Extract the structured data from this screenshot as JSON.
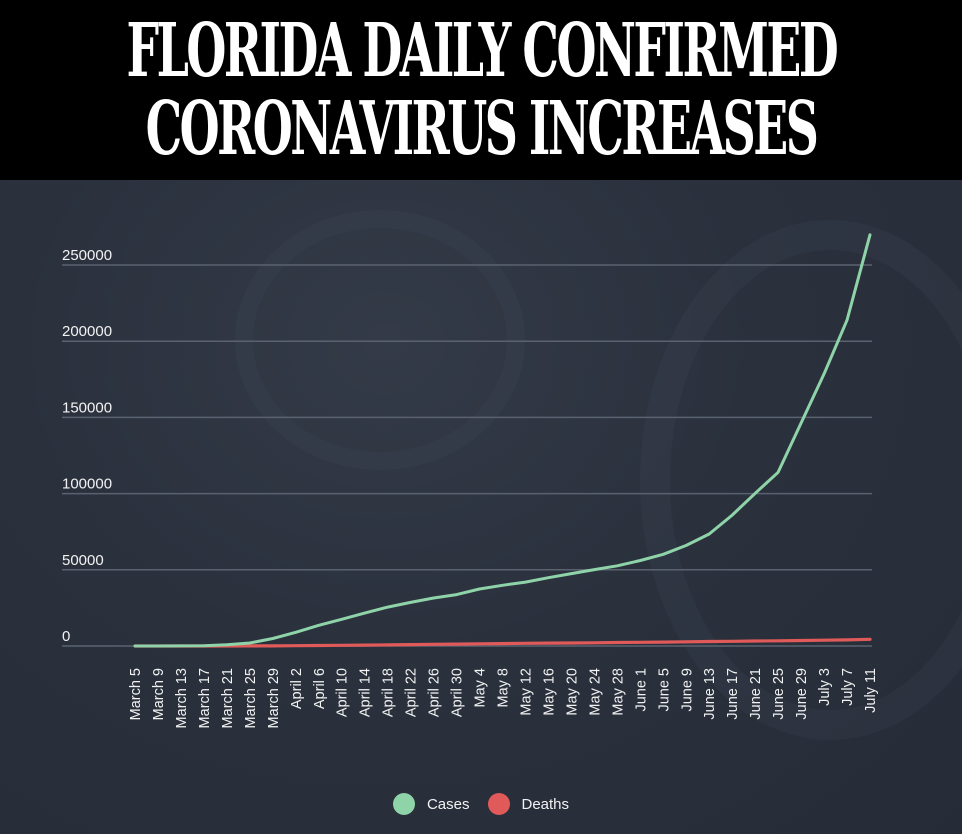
{
  "header": {
    "title_line1": "FLORIDA DAILY CONFIRMED",
    "title_line2": "CORONAVIRUS INCREASES"
  },
  "colors": {
    "cases": "#8fd3a9",
    "deaths": "#e05a5a",
    "gridline": "#5a6270",
    "background": "#2a313d",
    "header_bg": "#000000"
  },
  "legend": {
    "items": [
      {
        "label": "Cases",
        "color": "#8fd3a9"
      },
      {
        "label": "Deaths",
        "color": "#e05a5a"
      }
    ]
  },
  "chart_data": {
    "type": "line",
    "title": "FLORIDA DAILY CONFIRMED CORONAVIRUS INCREASES",
    "xlabel": "",
    "ylabel": "",
    "ylim": [
      0,
      250000
    ],
    "yticks": [
      0,
      50000,
      100000,
      150000,
      200000,
      250000
    ],
    "grid": true,
    "legend_position": "bottom",
    "categories": [
      "March 5",
      "March 9",
      "March 13",
      "March 17",
      "March 21",
      "March 25",
      "March 29",
      "April 2",
      "April 6",
      "April 10",
      "April 14",
      "April 18",
      "April 22",
      "April 26",
      "April 30",
      "May 4",
      "May 8",
      "May 12",
      "May 16",
      "May 20",
      "May 24",
      "May 28",
      "June 1",
      "June 5",
      "June 9",
      "June 13",
      "June 17",
      "June 21",
      "June 25",
      "June 29",
      "July 3",
      "July 7",
      "July 11"
    ],
    "series": [
      {
        "name": "Cases",
        "color": "#8fd3a9",
        "values": [
          0,
          15,
          50,
          200,
          800,
          2000,
          4900,
          9000,
          13600,
          17500,
          21600,
          25500,
          28600,
          31500,
          33700,
          37400,
          39800,
          41900,
          44800,
          47500,
          50100,
          52600,
          56100,
          60200,
          66000,
          73500,
          85900,
          100200,
          114000,
          146300,
          178600,
          213800,
          269800
        ]
      },
      {
        "name": "Deaths",
        "color": "#e05a5a",
        "values": [
          0,
          0,
          0,
          10,
          20,
          40,
          70,
          200,
          300,
          450,
          600,
          750,
          900,
          1100,
          1250,
          1450,
          1600,
          1750,
          1900,
          2000,
          2100,
          2300,
          2450,
          2550,
          2750,
          2950,
          3100,
          3300,
          3400,
          3600,
          3800,
          4000,
          4400
        ]
      }
    ]
  }
}
